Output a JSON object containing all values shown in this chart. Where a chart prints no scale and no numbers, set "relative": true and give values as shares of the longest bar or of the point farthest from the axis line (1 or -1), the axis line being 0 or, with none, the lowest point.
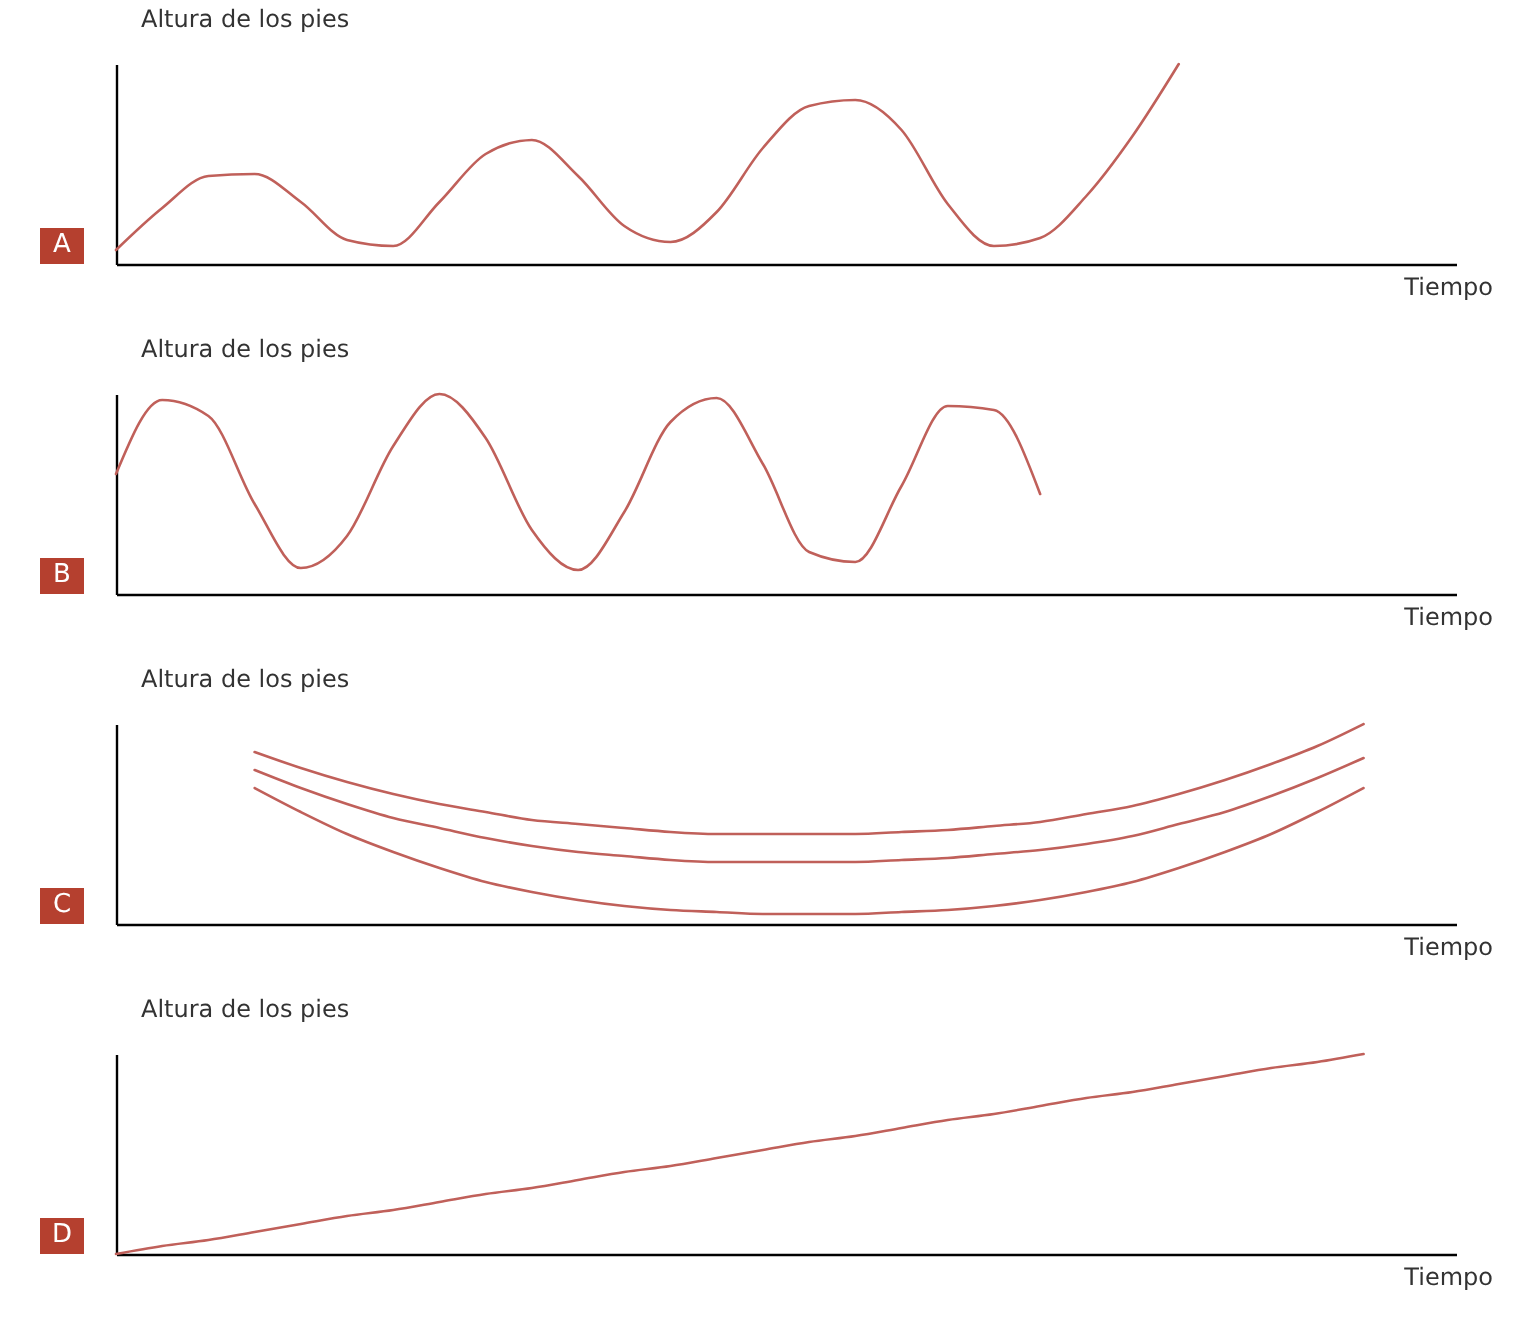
{
  "chart_data": [
    {
      "type": "line",
      "relative": true,
      "tick_labels": false,
      "ylabel": "Altura de los pies",
      "xlabel": "Tiempo",
      "annotations": [
        "A"
      ],
      "categories": [
        null,
        null,
        null,
        null,
        null,
        null,
        null,
        null,
        null,
        null,
        null,
        null,
        null,
        null,
        null,
        null,
        null,
        null,
        null,
        null,
        null,
        null,
        null,
        null,
        null,
        null,
        null,
        null,
        null,
        null
      ],
      "series": [
        {
          "color": "#c0605a",
          "values": [
            0.07,
            0.28,
            0.44,
            0.45,
            0.31,
            0.12,
            0.09,
            0.31,
            0.55,
            0.62,
            0.44,
            0.19,
            0.11,
            0.26,
            0.58,
            0.79,
            0.82,
            0.67,
            0.3,
            0.09,
            0.13,
            0.34,
            0.64,
            1,
            null,
            null,
            null,
            null,
            null,
            null
          ]
        }
      ]
    },
    {
      "type": "line",
      "relative": true,
      "tick_labels": false,
      "ylabel": "Altura de los pies",
      "xlabel": "Tiempo",
      "annotations": [
        "B"
      ],
      "categories": [
        null,
        null,
        null,
        null,
        null,
        null,
        null,
        null,
        null,
        null,
        null,
        null,
        null,
        null,
        null,
        null,
        null,
        null,
        null,
        null,
        null,
        null,
        null,
        null,
        null,
        null,
        null,
        null,
        null,
        null
      ],
      "series": [
        {
          "color": "#c0605a",
          "values": [
            0.6,
            0.97,
            0.89,
            0.45,
            0.13,
            0.29,
            0.74,
            1,
            0.78,
            0.32,
            0.12,
            0.41,
            0.86,
            0.98,
            0.65,
            0.21,
            0.16,
            0.54,
            0.94,
            0.92,
            0.5,
            null,
            null,
            null,
            null,
            null,
            null,
            null,
            null,
            null
          ]
        }
      ]
    },
    {
      "type": "line",
      "relative": true,
      "tick_labels": false,
      "ylabel": "Altura de los pies",
      "xlabel": "Tiempo",
      "annotations": [
        "C"
      ],
      "categories": [
        null,
        null,
        null,
        null,
        null,
        null,
        null,
        null,
        null,
        null,
        null,
        null,
        null,
        null,
        null,
        null,
        null,
        null,
        null,
        null,
        null,
        null,
        null,
        null,
        null,
        null,
        null,
        null,
        null,
        null
      ],
      "series": [
        {
          "color": "#c0605a",
          "values": [
            null,
            null,
            null,
            0.86,
            0.78,
            0.71,
            0.65,
            0.6,
            0.56,
            0.52,
            0.5,
            0.48,
            0.46,
            0.45,
            0.45,
            0.45,
            0.45,
            0.46,
            0.47,
            0.49,
            0.51,
            0.55,
            0.59,
            0.65,
            0.72,
            0.8,
            0.89,
            1,
            null,
            null
          ]
        },
        {
          "color": "#c0605a",
          "values": [
            null,
            null,
            null,
            0.77,
            0.68,
            0.6,
            0.53,
            0.48,
            0.43,
            0.39,
            0.36,
            0.34,
            0.32,
            0.31,
            0.31,
            0.31,
            0.31,
            0.32,
            0.33,
            0.35,
            0.37,
            0.4,
            0.44,
            0.5,
            0.56,
            0.64,
            0.73,
            0.83,
            null,
            null
          ]
        },
        {
          "color": "#c0605a",
          "values": [
            null,
            null,
            null,
            0.68,
            0.56,
            0.45,
            0.36,
            0.28,
            0.21,
            0.16,
            0.12,
            0.09,
            0.07,
            0.06,
            0.05,
            0.05,
            0.05,
            0.06,
            0.07,
            0.09,
            0.12,
            0.16,
            0.21,
            0.28,
            0.36,
            0.45,
            0.56,
            0.68,
            null,
            null
          ]
        }
      ]
    },
    {
      "type": "line",
      "relative": true,
      "tick_labels": false,
      "ylabel": "Altura de los pies",
      "xlabel": "Tiempo",
      "annotations": [
        "D"
      ],
      "categories": [
        null,
        null,
        null,
        null,
        null,
        null,
        null,
        null,
        null,
        null,
        null,
        null,
        null,
        null,
        null,
        null,
        null,
        null,
        null,
        null,
        null,
        null,
        null,
        null,
        null,
        null,
        null,
        null,
        null,
        null
      ],
      "series": [
        {
          "color": "#c0605a",
          "values": [
            0,
            0.04,
            0.07,
            0.11,
            0.15,
            0.19,
            0.22,
            0.26,
            0.3,
            0.33,
            0.37,
            0.41,
            0.44,
            0.48,
            0.52,
            0.56,
            0.59,
            0.63,
            0.67,
            0.7,
            0.74,
            0.78,
            0.81,
            0.85,
            0.89,
            0.93,
            0.96,
            1,
            null,
            null
          ]
        }
      ]
    }
  ]
}
